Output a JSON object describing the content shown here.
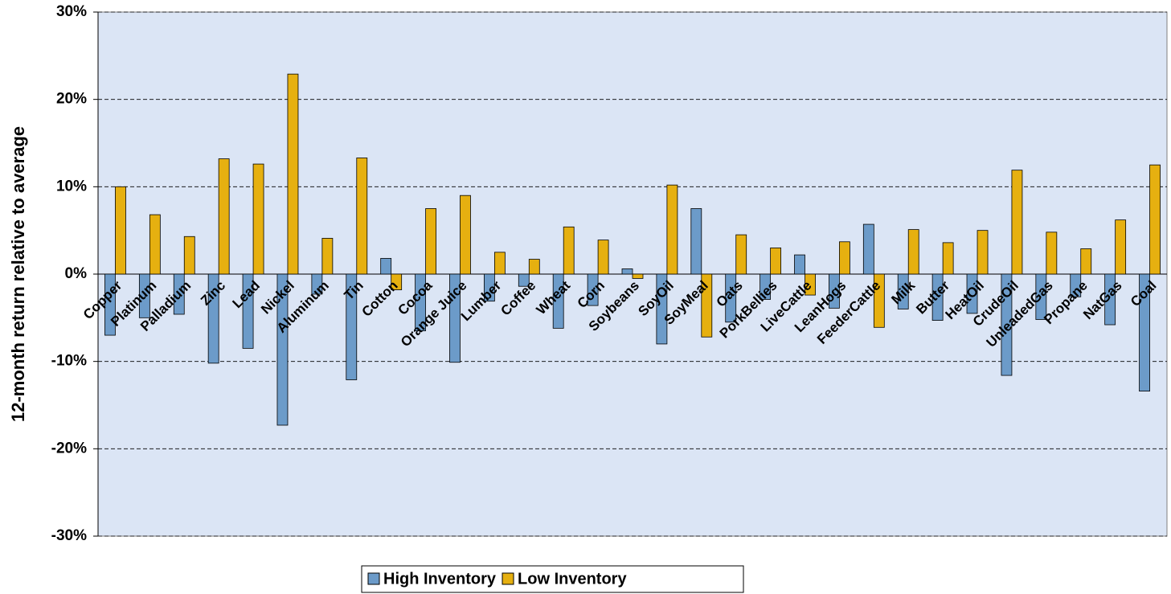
{
  "chart_data": {
    "type": "bar",
    "y_label": "12-month return relative to average",
    "categories": [
      "Copper",
      "Platinum",
      "Palladium",
      "Zinc",
      "Lead",
      "Nickel",
      "Aluminum",
      "Tin",
      "Cotton",
      "Cocoa",
      "Orange Juice",
      "Lumber",
      "Coffee",
      "Wheat",
      "Corn",
      "Soybeans",
      "SoyOil",
      "SoyMeal",
      "Oats",
      "PorkBellies",
      "LiveCattle",
      "LeanHogs",
      "FeederCattle",
      "Milk",
      "Butter",
      "HeatOil",
      "CrudeOil",
      "UnleadedGas",
      "Propane",
      "NatGas",
      "Coal"
    ],
    "series": [
      {
        "name": "High Inventory",
        "color": "#6c9bc9",
        "values": [
          -7,
          -5,
          -4.6,
          -10.2,
          -8.5,
          -17.3,
          -2.3,
          -12.1,
          1.8,
          -6.5,
          -10.1,
          -3.1,
          -1.4,
          -6.2,
          -3.6,
          0.6,
          -8,
          7.5,
          -5.5,
          -2.9,
          2.2,
          -3.9,
          5.7,
          -4,
          -5.3,
          -4.5,
          -11.6,
          -5.2,
          -2.6,
          -5.8,
          -13.4
        ]
      },
      {
        "name": "Low Inventory",
        "color": "#e6b010",
        "values": [
          10,
          6.8,
          4.3,
          13.2,
          12.6,
          22.9,
          4.1,
          13.3,
          -1.8,
          7.5,
          9,
          2.5,
          1.7,
          5.4,
          3.9,
          -0.5,
          10.2,
          -7.2,
          4.5,
          3,
          -2.4,
          3.7,
          -6.1,
          5.1,
          3.6,
          5,
          11.9,
          4.8,
          2.9,
          6.2,
          12.5
        ]
      }
    ],
    "ylim": [
      -30,
      30
    ],
    "yticks": [
      {
        "value": -30,
        "label": "-30%"
      },
      {
        "value": -20,
        "label": "-20%"
      },
      {
        "value": -10,
        "label": "-10%"
      },
      {
        "value": 0,
        "label": "0%"
      },
      {
        "value": 10,
        "label": "10%"
      },
      {
        "value": 20,
        "label": "20%"
      },
      {
        "value": 30,
        "label": "30%"
      }
    ],
    "grid": true,
    "plot_color": "#dbe5f5"
  }
}
